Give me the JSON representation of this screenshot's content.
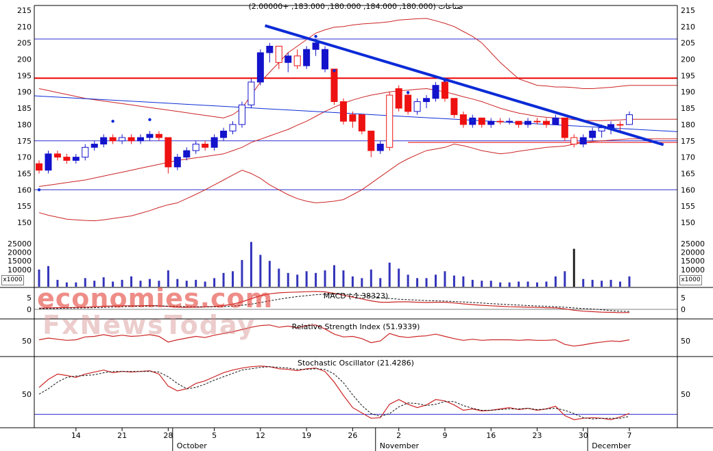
{
  "watermark": {
    "line1": "economies.com",
    "line2": "FxNewsToday"
  },
  "colors": {
    "up": "#1313cc",
    "down": "#ee1111",
    "band": "#cc2222",
    "hline_blue": "#2b2bcc",
    "hline_red": "#ee0000",
    "trend": "#0a2bd6",
    "volume": "#3333bb",
    "volume_dark": "#222222",
    "indicator": "#cc2222",
    "signal": "#111111",
    "axis_text": "#000000"
  },
  "chart_data": {
    "type": "candlestick",
    "title": "صناعات (180.000, 184.000, 180.000, 183.000, +2.00000)",
    "quote": {
      "open": "180.000",
      "high": "184.000",
      "low": "180.000",
      "close": "183.000",
      "change": "+2.00000"
    },
    "price_axis": {
      "min": 150,
      "max": 215,
      "step": 5,
      "ticks": [
        215,
        210,
        205,
        200,
        195,
        190,
        185,
        180,
        175,
        170,
        165,
        160,
        155,
        150
      ]
    },
    "volume_axis": {
      "ticks": [
        25000,
        20000,
        15000,
        10000
      ],
      "multiplier_label": "x1000"
    },
    "volume_highlight_index": 58,
    "candles": [
      [
        168,
        169,
        165,
        166,
        "r",
        10000
      ],
      [
        166,
        172,
        165,
        171,
        "b",
        12000
      ],
      [
        171,
        172,
        169,
        170,
        "r",
        4000
      ],
      [
        170,
        171,
        168,
        169,
        "r",
        2500
      ],
      [
        169,
        171,
        168,
        170,
        "b",
        2500
      ],
      [
        170,
        174,
        169,
        173,
        "B",
        5000
      ],
      [
        173,
        175,
        172,
        174,
        "b",
        3500
      ],
      [
        174,
        177,
        173,
        176,
        "b",
        5500
      ],
      [
        176,
        177,
        174,
        175,
        "r",
        3000
      ],
      [
        175,
        177,
        174,
        176,
        "B",
        4000
      ],
      [
        176,
        177,
        174,
        175,
        "r",
        6000
      ],
      [
        175,
        177,
        174,
        176,
        "b",
        3500
      ],
      [
        176,
        178,
        175,
        177,
        "b",
        4500
      ],
      [
        177,
        178,
        175,
        176,
        "r",
        3500
      ],
      [
        176,
        176,
        165,
        167,
        "r",
        9500
      ],
      [
        167,
        171,
        166,
        170,
        "b",
        4500
      ],
      [
        170,
        173,
        169,
        172,
        "b",
        3500
      ],
      [
        172,
        175,
        171,
        174,
        "B",
        4000
      ],
      [
        174,
        175,
        172,
        173,
        "r",
        3000
      ],
      [
        173,
        177,
        172,
        176,
        "b",
        5000
      ],
      [
        176,
        179,
        175,
        178,
        "b",
        8000
      ],
      [
        178,
        181,
        177,
        180,
        "B",
        9000
      ],
      [
        180,
        187,
        179,
        186,
        "B",
        15500
      ],
      [
        186,
        194,
        185,
        193,
        "B",
        26000
      ],
      [
        193,
        203,
        192,
        202,
        "b",
        18500
      ],
      [
        202,
        205,
        199,
        204,
        "b",
        15000
      ],
      [
        204,
        204,
        197,
        199,
        "R",
        10500
      ],
      [
        199,
        202,
        196,
        201,
        "b",
        8000
      ],
      [
        201,
        203,
        197,
        198,
        "R",
        7000
      ],
      [
        198,
        204,
        197,
        203,
        "b",
        9000
      ],
      [
        203,
        206,
        201,
        205,
        "b",
        8000
      ],
      [
        203,
        204,
        196,
        197,
        "b",
        9500
      ],
      [
        197,
        197,
        186,
        187,
        "r",
        12500
      ],
      [
        187,
        188,
        180,
        181,
        "r",
        9500
      ],
      [
        181,
        184,
        179,
        183,
        "r",
        6000
      ],
      [
        183,
        183,
        177,
        178,
        "r",
        5000
      ],
      [
        178,
        178,
        170,
        172,
        "r",
        10000
      ],
      [
        172,
        175,
        171,
        174,
        "b",
        5000
      ],
      [
        173,
        190,
        172,
        189,
        "R",
        14000
      ],
      [
        191,
        192,
        184,
        185,
        "r",
        10500
      ],
      [
        189,
        190,
        183,
        184,
        "r",
        7000
      ],
      [
        184,
        188,
        183,
        187,
        "B",
        5000
      ],
      [
        187,
        189,
        185,
        188,
        "b",
        5000
      ],
      [
        188,
        193,
        187,
        192,
        "b",
        7000
      ],
      [
        193,
        193,
        187,
        188,
        "r",
        9000
      ],
      [
        188,
        188,
        182,
        183,
        "r",
        6500
      ],
      [
        183,
        184,
        179,
        180,
        "r",
        6000
      ],
      [
        180,
        183,
        179,
        182,
        "b",
        4000
      ],
      [
        182,
        182,
        179,
        180,
        "r",
        3500
      ],
      [
        180,
        182,
        179,
        181,
        "b",
        3500
      ],
      [
        181,
        182,
        180,
        181,
        "r",
        2500
      ],
      [
        181,
        182,
        180,
        181,
        "b",
        2500
      ],
      [
        181,
        181,
        179,
        180,
        "r",
        3000
      ],
      [
        180,
        182,
        179,
        181,
        "b",
        3000
      ],
      [
        181,
        182,
        180,
        181,
        "r",
        2500
      ],
      [
        181,
        182,
        179,
        180,
        "r",
        3000
      ],
      [
        180,
        183,
        180,
        182,
        "b",
        6000
      ],
      [
        182,
        182,
        175,
        176,
        "r",
        9000
      ],
      [
        176,
        177,
        173,
        174,
        "R",
        22000
      ],
      [
        174,
        177,
        173,
        176,
        "b",
        4500
      ],
      [
        176,
        179,
        175,
        178,
        "b",
        4000
      ],
      [
        178,
        180,
        176,
        179,
        "B",
        3500
      ],
      [
        179,
        181,
        177,
        180,
        "b",
        4000
      ],
      [
        180,
        181,
        178,
        180,
        "r",
        3000
      ],
      [
        180,
        184,
        180,
        183,
        "B",
        6000
      ]
    ],
    "dots": [
      [
        0,
        160
      ],
      [
        8,
        181
      ],
      [
        12,
        181.5
      ],
      [
        30,
        207
      ],
      [
        32,
        196.5
      ],
      [
        40,
        189.8
      ],
      [
        44,
        193.5
      ],
      [
        47,
        181.3
      ]
    ],
    "bollinger": {
      "upper": [
        191,
        190.4,
        189.8,
        189.2,
        188.6,
        188,
        187.6,
        187.2,
        186.8,
        186.4,
        186,
        185.6,
        185.2,
        184.8,
        184.4,
        184,
        183.6,
        183.2,
        182.8,
        182.4,
        182,
        183,
        185,
        189,
        193,
        196,
        199,
        202,
        204,
        206,
        208,
        209,
        209.8,
        210,
        210.5,
        210.8,
        211,
        211.2,
        211.5,
        212,
        212.2,
        212.4,
        212.5,
        211.8,
        211,
        210,
        208.5,
        207,
        205,
        202,
        199,
        196.5,
        194,
        193,
        192,
        191.8,
        191.5,
        191.5,
        191.3,
        191,
        191,
        191.2,
        191.4,
        191.7,
        192
      ],
      "middle": [
        161,
        161.4,
        161.8,
        162.2,
        162.6,
        163,
        163.6,
        164.2,
        164.8,
        165.4,
        166,
        166.6,
        167.2,
        167.8,
        168.4,
        169,
        169.4,
        169.8,
        170.2,
        170.6,
        171,
        172,
        173,
        174.5,
        175.5,
        176.5,
        177.5,
        178.5,
        179.8,
        181,
        182.5,
        184,
        185.3,
        186.5,
        187.5,
        188.3,
        189,
        189.5,
        190,
        190.3,
        190.5,
        190.8,
        191,
        190.5,
        190,
        189.3,
        188.5,
        187.8,
        187,
        186,
        185,
        184.2,
        183.5,
        183,
        182.5,
        182.2,
        182,
        181.8,
        181.5,
        181.3,
        181.2,
        181.2,
        181.3,
        181.4,
        181.6
      ],
      "lower": [
        153,
        152.2,
        151.6,
        151,
        150.8,
        150.6,
        150.5,
        150.8,
        151.2,
        151.6,
        152,
        152.8,
        153.6,
        154.6,
        155.4,
        156,
        157.3,
        158.6,
        160,
        161.5,
        163,
        164.5,
        166,
        165,
        163.5,
        161.5,
        160,
        158.5,
        157.3,
        156.5,
        156,
        156.2,
        156.5,
        157,
        158.5,
        160,
        162,
        164,
        166,
        168,
        169.5,
        170.8,
        172,
        172.5,
        173,
        174,
        173.5,
        172.8,
        172,
        171.5,
        171,
        171.3,
        171.8,
        172.2,
        172.6,
        173,
        173.2,
        173.4,
        174,
        174.5,
        174.8,
        175,
        175.2,
        175.4,
        175.6
      ]
    },
    "hlines": [
      {
        "price": 206.2,
        "color": "blue",
        "w": 1
      },
      {
        "price": 194.2,
        "color": "red",
        "w": 2
      },
      {
        "price": 175.0,
        "color": "blue",
        "w": 1
      },
      {
        "price": 160.0,
        "color": "blue",
        "w": 1
      }
    ],
    "segments": [
      {
        "price": 174.5,
        "from_i": 40,
        "color": "red"
      }
    ],
    "trendlines": [
      {
        "x1i": 24.5,
        "p1": 210.3,
        "x2i": 67.7,
        "p2": 173.8,
        "w": 4
      },
      {
        "edge": true,
        "p1": 188.8,
        "p2": 177.8,
        "w": 1
      }
    ],
    "indicators": {
      "macd": {
        "label": "MACD (-1.38323)",
        "value": -1.38323,
        "axis_ticks": [
          5,
          0
        ],
        "range": [
          -3.5,
          9
        ],
        "zero_line": true,
        "line": [
          0.5,
          0.6,
          0.7,
          0.7,
          0.8,
          0.9,
          1.1,
          1.3,
          1.4,
          1.5,
          1.5,
          1.5,
          1.6,
          1.5,
          1.2,
          0.9,
          0.8,
          0.9,
          1,
          1.2,
          1.6,
          2.2,
          3.2,
          4.5,
          5.8,
          6.6,
          7,
          7.2,
          7.3,
          7.5,
          7.6,
          7.4,
          6.8,
          6,
          5.2,
          4.4,
          3.6,
          3,
          3,
          3.2,
          3.2,
          3,
          2.9,
          3,
          3,
          2.7,
          2.3,
          2,
          1.7,
          1.5,
          1.3,
          1.1,
          1,
          0.9,
          0.8,
          0.7,
          0.6,
          0.2,
          -0.4,
          -0.8,
          -1,
          -1.2,
          -1.3,
          -1.4,
          -1.38
        ],
        "signal": [
          0.3,
          0.35,
          0.4,
          0.5,
          0.55,
          0.6,
          0.7,
          0.8,
          0.95,
          1.1,
          1.2,
          1.3,
          1.35,
          1.4,
          1.35,
          1.25,
          1.15,
          1.1,
          1.05,
          1.05,
          1.15,
          1.35,
          1.7,
          2.2,
          2.9,
          3.6,
          4.3,
          4.9,
          5.4,
          5.8,
          6.2,
          6.4,
          6.5,
          6.4,
          6.2,
          5.9,
          5.5,
          5,
          4.6,
          4.3,
          4.1,
          3.9,
          3.7,
          3.6,
          3.5,
          3.3,
          3.1,
          2.9,
          2.7,
          2.4,
          2.2,
          2,
          1.8,
          1.6,
          1.4,
          1.3,
          1.1,
          0.9,
          0.6,
          0.3,
          0.1,
          -0.2,
          -0.5,
          -0.8,
          -0.9
        ]
      },
      "rsi": {
        "label": "Relative Strength Index (51.9339)",
        "value": 51.9339,
        "axis_ticks": [
          50
        ],
        "range": [
          25,
          85
        ],
        "line": [
          52,
          55,
          53,
          51,
          52,
          57,
          58,
          61,
          58,
          60,
          58,
          59,
          61,
          58,
          48,
          52,
          55,
          58,
          56,
          60,
          63,
          66,
          70,
          74,
          77,
          78,
          74,
          76,
          73,
          77,
          78,
          71,
          62,
          57,
          58,
          54,
          47,
          50,
          63,
          58,
          56,
          58,
          59,
          62,
          58,
          54,
          51,
          53,
          51,
          52,
          52,
          52,
          51,
          52,
          51,
          51,
          52,
          44,
          41,
          43,
          46,
          48,
          50,
          49,
          52
        ]
      },
      "stoch": {
        "label": "Stochastic Oscillator (21.4286)",
        "value": 21.4286,
        "axis_ticks": [
          50
        ],
        "range": [
          2,
          100
        ],
        "hline": 20,
        "line": [
          60,
          72,
          80,
          78,
          75,
          80,
          83,
          86,
          82,
          84,
          83,
          84,
          85,
          80,
          62,
          55,
          58,
          66,
          70,
          76,
          82,
          86,
          89,
          91,
          92,
          91,
          88,
          87,
          85,
          88,
          89,
          84,
          68,
          48,
          30,
          22,
          14,
          15,
          35,
          42,
          35,
          30,
          34,
          42,
          40,
          34,
          26,
          28,
          25,
          26,
          28,
          30,
          27,
          29,
          26,
          28,
          32,
          18,
          12,
          14,
          15,
          14,
          12,
          16,
          21.4
        ],
        "signal": [
          50,
          58,
          68,
          75,
          77,
          78,
          79,
          82,
          84,
          84,
          84,
          84,
          84,
          83,
          76,
          66,
          58,
          60,
          65,
          71,
          76,
          81,
          86,
          88,
          90,
          91,
          90,
          89,
          87,
          87,
          88,
          87,
          80,
          67,
          49,
          33,
          21,
          17,
          21,
          31,
          37,
          36,
          33,
          35,
          39,
          39,
          33,
          29,
          26,
          26,
          27,
          28,
          28,
          29,
          27,
          28,
          29,
          26,
          21,
          15,
          13,
          14,
          14,
          14,
          17
        ]
      }
    },
    "xaxis": {
      "tick_is": [
        4,
        9,
        14,
        19,
        24,
        29,
        34,
        39,
        44,
        49,
        54,
        59,
        64
      ],
      "tick_labels": [
        "14",
        "21",
        "28",
        "5",
        "12",
        "19",
        "26",
        "2",
        "9",
        "16",
        "23",
        "30",
        "7"
      ],
      "months": [
        {
          "label": "October",
          "i": 15
        },
        {
          "label": "November",
          "i": 37
        },
        {
          "label": "December",
          "i": 60
        }
      ]
    }
  }
}
